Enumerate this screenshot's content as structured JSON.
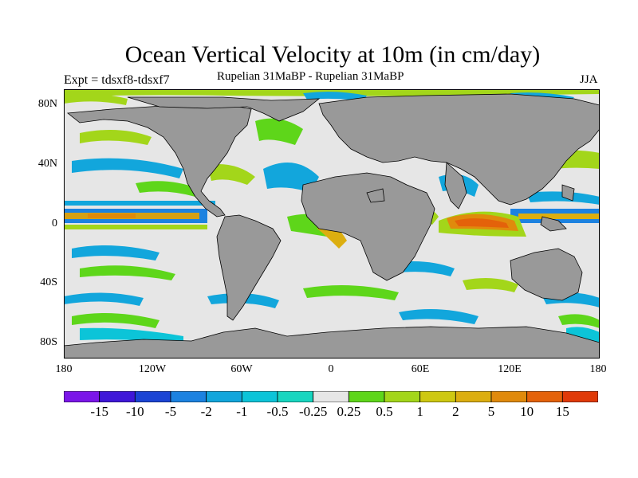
{
  "title": "Ocean Vertical Velocity at 10m (in cm/day)",
  "subtitle": "Rupelian  31MaBP - Rupelian  31MaBP",
  "experiment": "Expt = tdsxf8-tdsxf7",
  "season": "JJA",
  "lat_ticks": [
    "80N",
    "40N",
    "0",
    "40S",
    "80S"
  ],
  "lon_ticks": [
    "180",
    "120W",
    "60W",
    "0",
    "60E",
    "120E",
    "180"
  ],
  "colorbar": {
    "labels": [
      "-15",
      "-10",
      "-5",
      "-2",
      "-1",
      "-0.5",
      "-0.25",
      "0.25",
      "0.5",
      "1",
      "2",
      "5",
      "10",
      "15"
    ],
    "colors": [
      "#7b16e8",
      "#3f17d8",
      "#1b44d4",
      "#1c82e0",
      "#12a6dc",
      "#0cc4d8",
      "#18d6c0",
      "#e6e6e6",
      "#5ed61a",
      "#a3d61a",
      "#cec812",
      "#dcae10",
      "#e08a0c",
      "#e4620a",
      "#e03a08"
    ]
  },
  "colors": {
    "land": "#999999",
    "background": "#e6e6e6"
  }
}
